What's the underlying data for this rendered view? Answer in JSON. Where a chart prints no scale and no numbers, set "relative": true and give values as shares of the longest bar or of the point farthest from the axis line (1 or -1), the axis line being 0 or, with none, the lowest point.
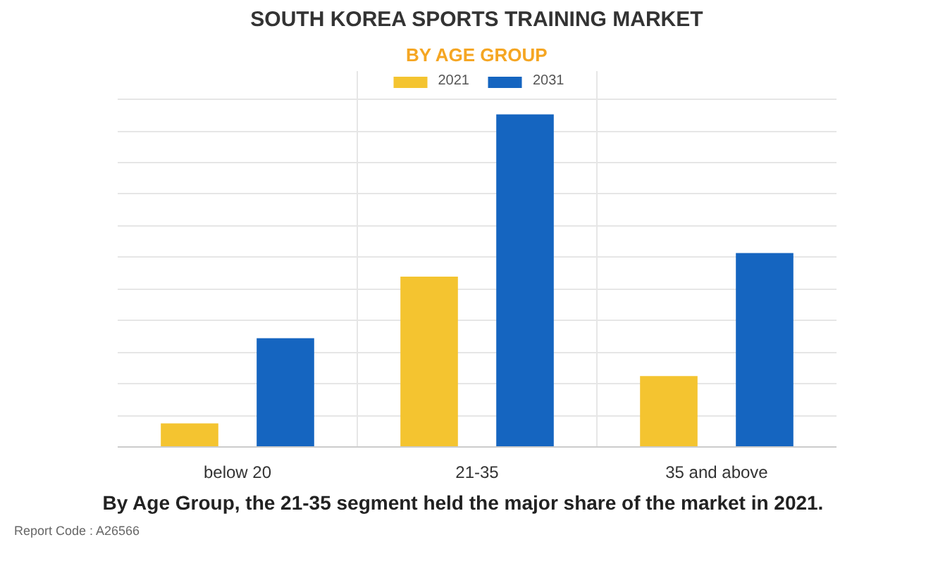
{
  "chart_data": {
    "type": "bar",
    "title": "SOUTH KOREA SPORTS TRAINING MARKET",
    "subtitle": "BY AGE GROUP",
    "categories": [
      "below 20",
      "21-35",
      "35 and above"
    ],
    "relative": true,
    "grid": true,
    "legend": "top",
    "series": [
      {
        "name": "2021",
        "color": "#f4c430",
        "values": [
          0.071,
          0.512,
          0.213
        ]
      },
      {
        "name": "2031",
        "color": "#1565c0",
        "values": [
          0.327,
          1,
          0.583
        ]
      }
    ],
    "annotations": [
      "By Age Group, the 21-35 segment held the major share of the market in 2021.",
      "Report Code : A26566"
    ]
  }
}
